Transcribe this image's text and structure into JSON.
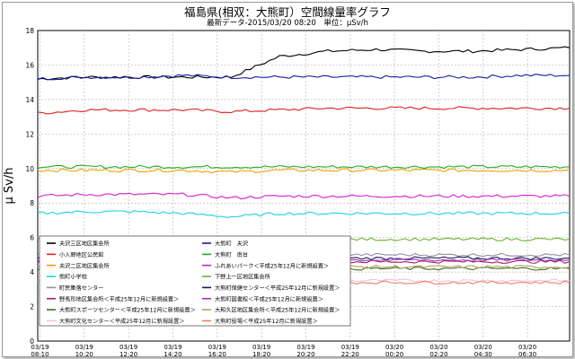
{
  "header": {
    "title": "福島県(相双：大熊町）空間線量率グラフ",
    "subtitle": "最新データ-2015/03/20 08:20　単位：μSv/h"
  },
  "chart_data": {
    "type": "line",
    "title": "福島県(相双：大熊町）空間線量率グラフ",
    "subtitle": "最新データ-2015/03/20 08:20　単位：μSv/h",
    "ylabel": "μ Sv/h",
    "xlabel": "",
    "ylim": [
      0,
      18
    ],
    "yticks": [
      0,
      2,
      4,
      6,
      8,
      10,
      12,
      14,
      16,
      18
    ],
    "grid": true,
    "x_tick_labels": [
      [
        "03/19",
        "08:10"
      ],
      [
        "03/19",
        "10:20"
      ],
      [
        "03/19",
        "12:20"
      ],
      [
        "03/19",
        "14:20"
      ],
      [
        "03/19",
        "16:20"
      ],
      [
        "03/19",
        "18:20"
      ],
      [
        "03/19",
        "20:20"
      ],
      [
        "03/19",
        "22:20"
      ],
      [
        "03/20",
        "00:20"
      ],
      [
        "03/20",
        "02:20"
      ],
      [
        "03/20",
        "04:30"
      ],
      [
        "03/20",
        "06:30"
      ]
    ],
    "legend_position": "bottom-left",
    "series": [
      {
        "name": "夫沢三区地区集会所",
        "color": "#000000",
        "values": [
          15.2,
          15.3,
          15.3,
          15.3,
          15.3,
          16.5,
          16.8,
          16.9,
          16.8,
          16.8,
          16.9,
          17.0
        ]
      },
      {
        "name": "大熊町　夫沢",
        "color": "#1a1aa8",
        "values": [
          15.2,
          15.3,
          15.3,
          15.4,
          15.3,
          15.3,
          15.3,
          15.3,
          15.3,
          15.3,
          15.4,
          15.4
        ]
      },
      {
        "name": "小入野地区公民館",
        "color": "#e02020",
        "values": [
          13.2,
          13.4,
          13.4,
          13.4,
          13.3,
          13.4,
          13.5,
          13.5,
          13.5,
          13.5,
          13.5,
          13.5
        ]
      },
      {
        "name": "大熊町　南台",
        "color": "#20b020",
        "values": [
          10.1,
          10.1,
          10.1,
          10.1,
          10.1,
          10.1,
          10.1,
          10.1,
          10.1,
          10.1,
          10.1,
          10.1
        ]
      },
      {
        "name": "夫沢二区地区集会所",
        "color": "#f0a000",
        "values": [
          9.9,
          9.9,
          9.9,
          9.9,
          9.8,
          9.9,
          9.9,
          9.9,
          9.9,
          9.9,
          9.9,
          9.9
        ]
      },
      {
        "name": "ふれあいパーク＜平成25年12月に新規設置＞",
        "color": "#d020d0",
        "values": [
          8.4,
          8.5,
          8.5,
          8.5,
          8.3,
          8.4,
          8.4,
          8.4,
          8.4,
          8.4,
          8.4,
          8.4
        ]
      },
      {
        "name": "熊町小学校",
        "color": "#20d0e0",
        "values": [
          7.4,
          7.5,
          7.5,
          7.4,
          7.2,
          7.4,
          7.4,
          7.4,
          7.4,
          7.4,
          7.4,
          7.4
        ]
      },
      {
        "name": "下野上一区地区集会所",
        "color": "#70b030",
        "values": [
          5.9,
          5.9,
          5.9,
          5.9,
          5.9,
          5.9,
          5.9,
          5.9,
          5.9,
          5.9,
          5.9,
          5.9
        ]
      },
      {
        "name": "町民集落センター",
        "color": "#9090a0",
        "values": [
          5.0,
          5.0,
          5.0,
          5.0,
          5.0,
          5.0,
          5.0,
          5.0,
          5.0,
          5.0,
          5.0,
          5.0
        ]
      },
      {
        "name": "大熊町保健センター＜平成25年12月に新規設置＞",
        "color": "#1a1a60",
        "values": [
          4.8,
          4.8,
          4.8,
          4.8,
          4.8,
          4.8,
          4.8,
          4.8,
          4.8,
          4.8,
          4.8,
          4.8
        ]
      },
      {
        "name": "野馬形地区集会所＜平成25年12月に新規設置＞",
        "color": "#a02060",
        "values": [
          4.6,
          4.6,
          4.6,
          4.6,
          4.6,
          4.6,
          4.6,
          4.6,
          4.6,
          4.6,
          4.6,
          4.6
        ]
      },
      {
        "name": "大熊町図書館＜平成25年12月に新規設置＞",
        "color": "#a030c0",
        "values": [
          4.7,
          4.7,
          4.7,
          4.7,
          4.7,
          4.7,
          4.7,
          4.7,
          4.7,
          4.7,
          4.7,
          4.7
        ]
      },
      {
        "name": "大熊町スポーツセンター＜平成25年12月に新規設置＞",
        "color": "#407020",
        "values": [
          4.2,
          4.2,
          4.2,
          4.2,
          4.2,
          4.2,
          4.2,
          4.2,
          4.2,
          4.2,
          4.2,
          4.2
        ]
      },
      {
        "name": "大和久区地区集会所＜平成25年12月に新規設置＞",
        "color": "#b0a060",
        "values": [
          4.3,
          4.3,
          4.3,
          4.3,
          4.3,
          4.3,
          4.3,
          4.3,
          4.3,
          4.3,
          4.3,
          4.3
        ]
      },
      {
        "name": "大熊町文化センター＜平成25年12月に新規設置＞",
        "color": "#f0c0e0",
        "values": [
          3.5,
          3.5,
          3.5,
          3.5,
          3.5,
          3.5,
          3.5,
          3.5,
          3.5,
          3.5,
          3.5,
          3.5
        ]
      },
      {
        "name": "大熊町役場＜平成25年12月に新規設置＞",
        "color": "#f08060",
        "values": [
          3.4,
          3.4,
          3.4,
          3.4,
          3.4,
          3.4,
          3.4,
          3.4,
          3.4,
          3.4,
          3.4,
          3.4
        ]
      }
    ]
  }
}
